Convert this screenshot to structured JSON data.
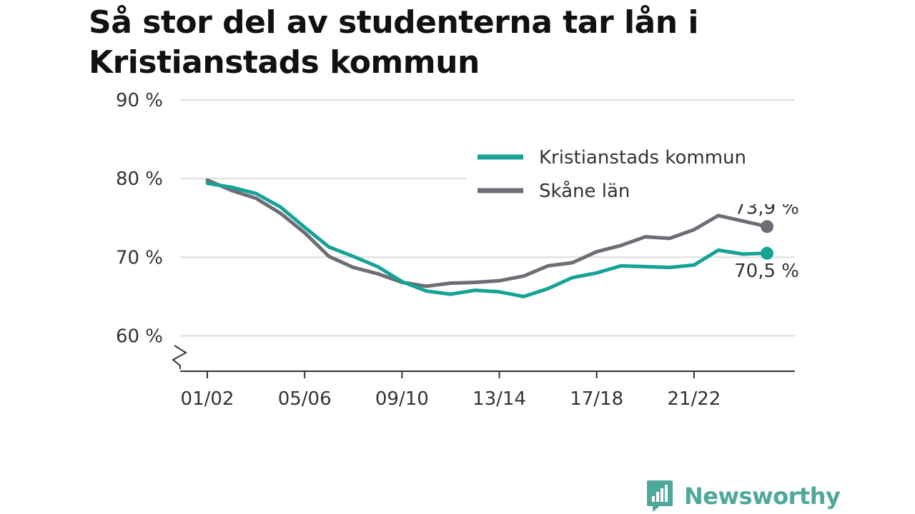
{
  "title": "Så stor del av studenterna tar lån i Kristianstads kommun",
  "brand": {
    "name": "Newsworthy",
    "icon": "bar-chart-logo-icon"
  },
  "chart_data": {
    "type": "line",
    "title": "Så stor del av studenterna tar lån i Kristianstads kommun",
    "xlabel": "",
    "ylabel": "",
    "categories": [
      "01/02",
      "02/03",
      "03/04",
      "04/05",
      "05/06",
      "06/07",
      "07/08",
      "08/09",
      "09/10",
      "10/11",
      "11/12",
      "12/13",
      "13/14",
      "14/15",
      "15/16",
      "16/17",
      "17/18",
      "18/19",
      "19/20",
      "20/21",
      "21/22",
      "22/23",
      "23/24",
      "24/25"
    ],
    "x_tick_labels": [
      "01/02",
      "05/06",
      "09/10",
      "13/14",
      "17/18",
      "21/22"
    ],
    "y_ticks": [
      60,
      70,
      80,
      90
    ],
    "y_tick_labels": [
      "60 %",
      "70 %",
      "80 %",
      "90 %"
    ],
    "ylim": [
      55.5,
      90
    ],
    "y_axis_break": true,
    "grid": true,
    "legend_position": "top-right",
    "series": [
      {
        "name": "Kristianstads kommun",
        "color": "#16a297",
        "values": [
          79.4,
          78.9,
          78.1,
          76.4,
          73.8,
          71.3,
          70.1,
          68.8,
          66.9,
          65.7,
          65.3,
          65.8,
          65.6,
          65.0,
          66.0,
          67.4,
          68.0,
          68.9,
          68.8,
          68.7,
          69.0,
          70.9,
          70.4,
          70.5
        ],
        "end_label": "70,5 %"
      },
      {
        "name": "Skåne län",
        "color": "#6d6d75",
        "values": [
          79.8,
          78.5,
          77.5,
          75.6,
          73.1,
          70.1,
          68.7,
          67.9,
          66.8,
          66.3,
          66.7,
          66.8,
          67.0,
          67.6,
          68.9,
          69.3,
          70.7,
          71.5,
          72.6,
          72.4,
          73.5,
          75.3,
          74.6,
          73.9
        ],
        "end_label": "73,9 %"
      }
    ]
  }
}
